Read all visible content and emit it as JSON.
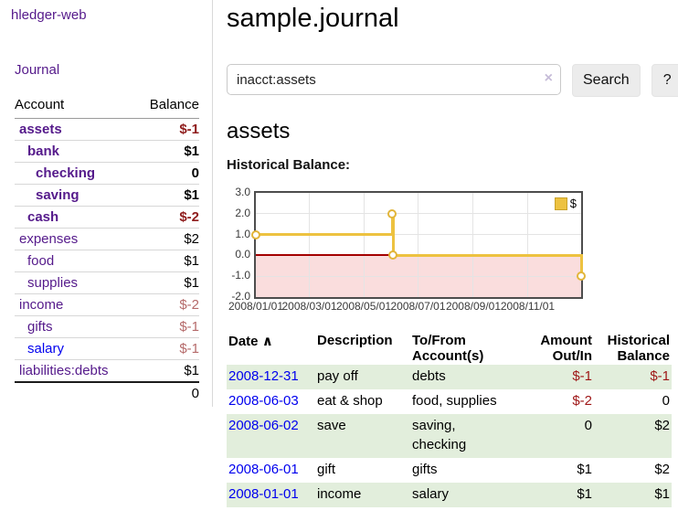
{
  "app": {
    "brand": "hledger-web",
    "nav_journal": "Journal"
  },
  "colors": {
    "link_purple": "#551a8b",
    "link_blue": "#0000ee",
    "negative_strong": "#8f1d1d",
    "negative_soft": "#b56a6a",
    "table_negative": "#9e1616",
    "row_stripe_green": "#e2eedc"
  },
  "sidebar": {
    "accounts_header": {
      "account": "Account",
      "balance": "Balance"
    },
    "accounts": [
      {
        "name": "assets",
        "depth": 0,
        "balance": "$-1",
        "bold": true,
        "negative_strong": true
      },
      {
        "name": "bank",
        "depth": 1,
        "balance": "$1",
        "bold": true
      },
      {
        "name": "checking",
        "depth": 2,
        "balance": "0",
        "bold": true
      },
      {
        "name": "saving",
        "depth": 2,
        "balance": "$1",
        "bold": true
      },
      {
        "name": "cash",
        "depth": 1,
        "balance": "$-2",
        "bold": true,
        "negative_strong": true
      },
      {
        "name": "expenses",
        "depth": 0,
        "balance": "$2"
      },
      {
        "name": "food",
        "depth": 1,
        "balance": "$1"
      },
      {
        "name": "supplies",
        "depth": 1,
        "balance": "$1"
      },
      {
        "name": "income",
        "depth": 0,
        "balance": "$-2",
        "negative_soft": true
      },
      {
        "name": "gifts",
        "depth": 1,
        "balance": "$-1",
        "negative_soft": true
      },
      {
        "name": "salary",
        "depth": 1,
        "balance": "$-1",
        "negative_soft": true,
        "unvisited_link": true
      },
      {
        "name": "liabilities:debts",
        "depth": 0,
        "balance": "$1"
      }
    ],
    "total": "0"
  },
  "header": {
    "title": "sample.journal"
  },
  "search": {
    "value": "inacct:assets",
    "clear_icon": "×",
    "button": "Search",
    "help_button": "?"
  },
  "account_page": {
    "title": "assets",
    "chart_label": "Historical Balance:"
  },
  "chart_data": {
    "type": "line",
    "title": "Historical Balance",
    "step": true,
    "series": [
      {
        "name": "$",
        "points": [
          {
            "x": "2008-01-01",
            "y": 1
          },
          {
            "x": "2008-06-02",
            "y": 2
          },
          {
            "x": "2008-06-03",
            "y": 0
          },
          {
            "x": "2008-12-31",
            "y": -1
          }
        ]
      }
    ],
    "x_range": [
      "2008-01-01",
      "2008-12-31"
    ],
    "ylim": [
      -2,
      3
    ],
    "y_ticks": [
      3,
      2,
      1,
      0,
      -1,
      -2
    ],
    "y_tick_labels": [
      "3.0",
      "2.0",
      "1.0",
      "0.0",
      "-1.0",
      "-2.0"
    ],
    "x_ticks": [
      {
        "x": "2008-01-01",
        "label": "2008/01/01"
      },
      {
        "x": "2008-03-01",
        "label": "2008/03/01"
      },
      {
        "x": "2008-05-01",
        "label": "2008/05/01"
      },
      {
        "x": "2008-07-01",
        "label": "2008/07/01"
      },
      {
        "x": "2008-09-01",
        "label": "2008/09/01"
      },
      {
        "x": "2008-11-01",
        "label": "2008/11/01"
      }
    ],
    "grid": true,
    "legend_position": "top-right",
    "legend": [
      {
        "label": "$",
        "color": "#edc240"
      }
    ],
    "colors": {
      "line": "#edc240",
      "marker_fill": "#ffffff",
      "negative_region": "#fadddd",
      "zero_line": "#a40000",
      "border": "#4d4d4d",
      "grid": "#e4e4e4"
    }
  },
  "transactions": {
    "sort_icon": "∧",
    "headers": {
      "date": "Date",
      "description": "Description",
      "tofrom": "To/From Account(s)",
      "amount": "Amount Out/In",
      "balance": "Historical Balance"
    },
    "rows": [
      {
        "date": "2008-12-31",
        "description": "pay off",
        "accounts": "debts",
        "amount": "$-1",
        "amount_negative": true,
        "balance": "$-1",
        "balance_negative": true
      },
      {
        "date": "2008-06-03",
        "description": "eat & shop",
        "accounts": "food, supplies",
        "amount": "$-2",
        "amount_negative": true,
        "balance": "0"
      },
      {
        "date": "2008-06-02",
        "description": "save",
        "accounts": "saving, checking",
        "amount": "0",
        "balance": "$2"
      },
      {
        "date": "2008-06-01",
        "description": "gift",
        "accounts": "gifts",
        "amount": "$1",
        "balance": "$2"
      },
      {
        "date": "2008-01-01",
        "description": "income",
        "accounts": "salary",
        "amount": "$1",
        "balance": "$1"
      }
    ]
  }
}
